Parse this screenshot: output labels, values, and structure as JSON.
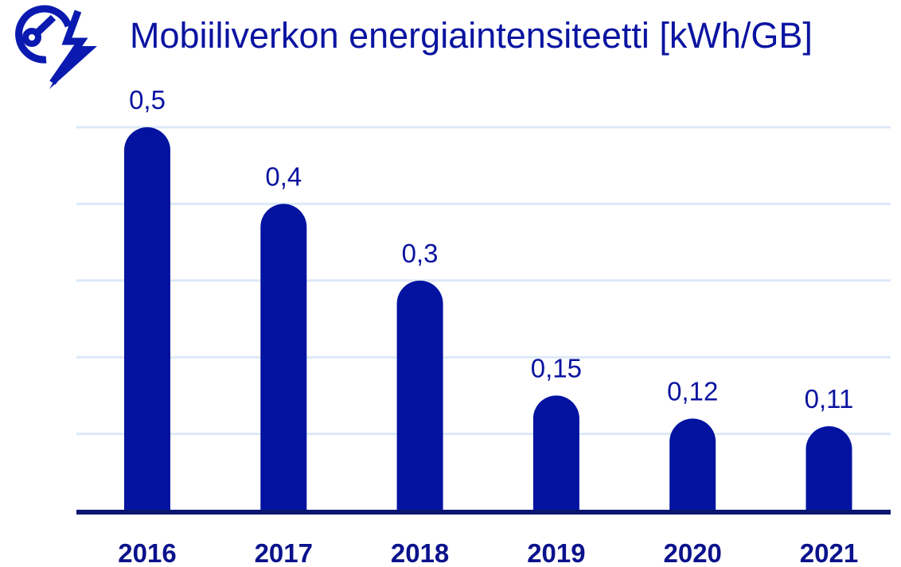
{
  "colors": {
    "bar": "#0313a0",
    "baseline": "#0a1670",
    "grid": "#dce9f7",
    "title": "#0a14a0",
    "label": "#0a14a0",
    "tick": "#0a128c",
    "logo": "#0a1ab0"
  },
  "logo": {
    "icon": "energy-lightning-bolt-logo-icon"
  },
  "chart_data": {
    "type": "bar",
    "title": "Mobiiliverkon energiaintensiteetti [kWh/GB]",
    "xlabel": "",
    "ylabel": "",
    "categories": [
      "2016",
      "2017",
      "2018",
      "2019",
      "2020",
      "2021"
    ],
    "values": [
      0.5,
      0.4,
      0.3,
      0.15,
      0.12,
      0.11
    ],
    "value_labels": [
      "0,5",
      "0,4",
      "0,3",
      "0,15",
      "0,12",
      "0,11"
    ],
    "ylim": [
      0,
      0.5
    ],
    "gridlines": [
      0.1,
      0.2,
      0.3,
      0.4,
      0.5
    ],
    "grid": true,
    "legend": "none"
  }
}
